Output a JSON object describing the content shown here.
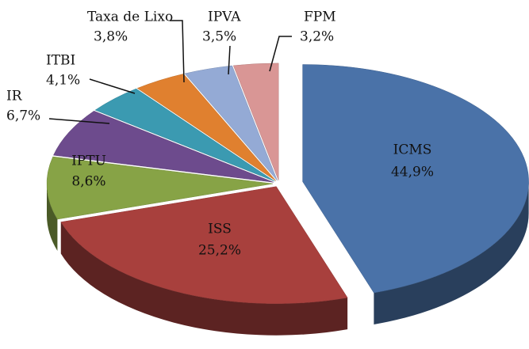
{
  "chart_data": {
    "type": "pie3d",
    "categories": [
      "ICMS",
      "ISS",
      "IPTU",
      "IR",
      "ITBI",
      "Taxa de Lixo",
      "IPVA",
      "FPM"
    ],
    "values": [
      44.9,
      25.2,
      8.6,
      6.7,
      4.1,
      3.8,
      3.5,
      3.2
    ],
    "value_labels": [
      "44,9%",
      "25,2%",
      "8,6%",
      "6,7%",
      "4,1%",
      "3,8%",
      "3,5%",
      "3,2%"
    ],
    "colors": [
      "#4a72a8",
      "#a8403d",
      "#87a346",
      "#6d4b8d",
      "#3b9ab1",
      "#e0802f",
      "#94aad5",
      "#d99695"
    ]
  }
}
